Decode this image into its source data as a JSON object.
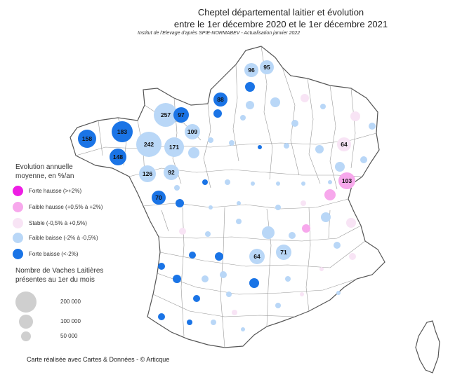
{
  "title_line1": "Cheptel départemental laitier et évolution",
  "title_line2": "entre le 1er décembre 2020 et le 1er décembre 2021",
  "source": "Institut de l'Elevage d'après SPIE-NORMABEV - Actualisation janvier 2022",
  "legend_color": {
    "title_line1": "Evolution annuelle",
    "title_line2": "moyenne, en %/an",
    "items": [
      {
        "label": "Forte hausse (>+2%)",
        "color": "#ee1ee4"
      },
      {
        "label": "Faible hausse (+0,5% à +2%)",
        "color": "#f7a8ec"
      },
      {
        "label": "Stable (-0,5% à +0,5%)",
        "color": "#f8e4f5"
      },
      {
        "label": "Faible baisse (-2% à -0,5%)",
        "color": "#b9d7f7"
      },
      {
        "label": "Forte baisse (<-2%)",
        "color": "#1a74e6"
      }
    ]
  },
  "legend_size": {
    "title_line1": "Nombre de Vaches Laitières",
    "title_line2": "présentes au 1er du mois",
    "items": [
      {
        "label": "200 000",
        "value": 200000
      },
      {
        "label": "100 000",
        "value": 100000
      },
      {
        "label": "50 000",
        "value": 50000
      }
    ]
  },
  "credit": "Carte réalisée avec Cartes & Données - © Articque",
  "labeled_departments": [
    {
      "label": "257",
      "color": "#b9d7f7"
    },
    {
      "label": "97",
      "color": "#1a74e6"
    },
    {
      "label": "183",
      "color": "#1a74e6"
    },
    {
      "label": "158",
      "color": "#1a74e6"
    },
    {
      "label": "148",
      "color": "#1a74e6"
    },
    {
      "label": "242",
      "color": "#b9d7f7"
    },
    {
      "label": "171",
      "color": "#b9d7f7"
    },
    {
      "label": "109",
      "color": "#b9d7f7"
    },
    {
      "label": "126",
      "color": "#b9d7f7"
    },
    {
      "label": "92",
      "color": "#b9d7f7"
    },
    {
      "label": "70",
      "color": "#1a74e6"
    },
    {
      "label": "88",
      "color": "#1a74e6"
    },
    {
      "label": "96",
      "color": "#b9d7f7"
    },
    {
      "label": "95",
      "color": "#b9d7f7"
    },
    {
      "label": "64",
      "color": "#f8e4f5"
    },
    {
      "label": "103",
      "color": "#f7a8ec"
    },
    {
      "label": "64",
      "color": "#b9d7f7"
    },
    {
      "label": "71",
      "color": "#b9d7f7"
    }
  ]
}
